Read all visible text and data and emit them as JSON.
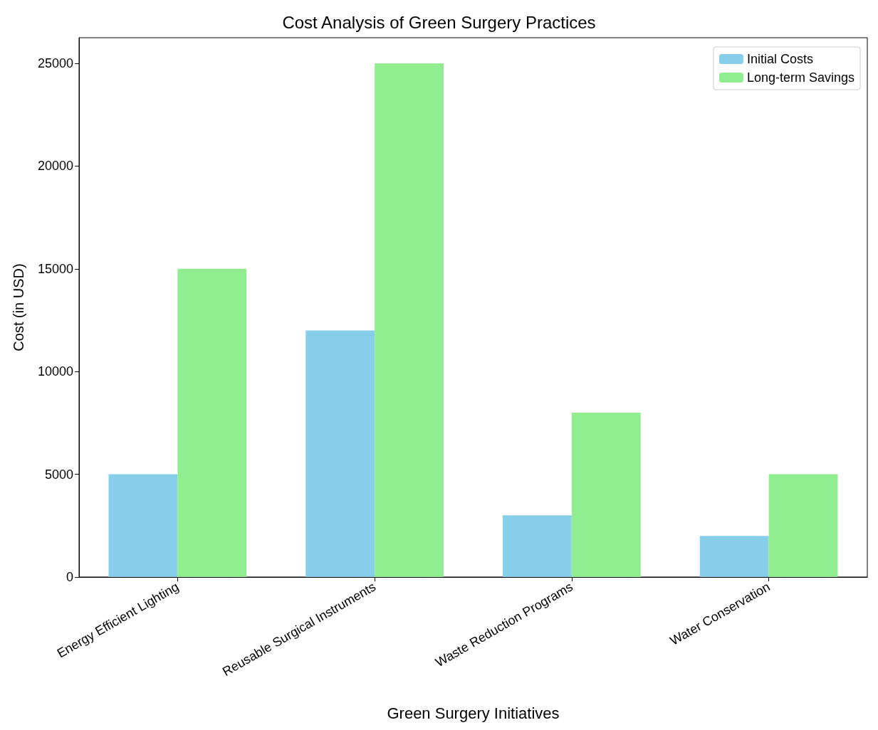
{
  "chart_data": {
    "type": "bar",
    "title": "Cost Analysis of Green Surgery Practices",
    "xlabel": "Green Surgery Initiatives",
    "ylabel": "Cost (in USD)",
    "categories": [
      "Energy Efficient Lighting",
      "Reusable Surgical Instruments",
      "Waste Reduction Programs",
      "Water Conservation"
    ],
    "series": [
      {
        "name": "Initial Costs",
        "color": "#87ceeb",
        "values": [
          5000,
          12000,
          3000,
          2000
        ]
      },
      {
        "name": "Long-term Savings",
        "color": "#90ee90",
        "values": [
          15000,
          25000,
          8000,
          5000
        ]
      }
    ],
    "ylim": [
      0,
      26250
    ],
    "yticks": [
      0,
      5000,
      10000,
      15000,
      20000,
      25000
    ],
    "legend": "top right"
  }
}
